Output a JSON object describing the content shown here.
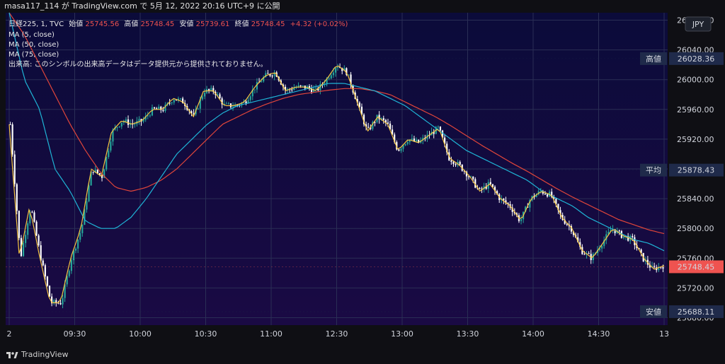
{
  "header": {
    "user": "masa117_114",
    "via": "が TradingView.com で",
    "timestamp": "5月 12, 2022 20:16 UTC+9",
    "published": "に公開"
  },
  "legend": {
    "symbol": "日経225, 1, TVC",
    "open_label": "始値",
    "open": "25745.56",
    "high_label": "高値",
    "high": "25748.45",
    "low_label": "安値",
    "low": "25739.61",
    "close_label": "終値",
    "close": "25748.45",
    "change": "+4.32 (+0.02%)",
    "ma1": "MA (5, close)",
    "ma2": "MA (50, close)",
    "ma3": "MA (75, close)",
    "volume_note": "出来高: このシンボルの出来高データはデータ提供元から提供されておりません。"
  },
  "currency": "JPY",
  "footer": {
    "brand": "TradingView"
  },
  "markers": {
    "high": {
      "label": "高値",
      "value": "26028.36"
    },
    "avg": {
      "label": "平均",
      "value": "25878.43"
    },
    "last": {
      "value": "25748.45"
    },
    "low": {
      "label": "安値",
      "value": "25688.11"
    }
  },
  "colors": {
    "background_top": "#0b0b3a",
    "background_bottom": "#1a0a44",
    "up": "#26a69a",
    "down": "#ffffff",
    "ma5": "#f5c542",
    "ma50": "#1fb5d6",
    "ma75": "#e0453a",
    "marker_box": "#1f2a4a",
    "last_box": "#ef5350"
  },
  "chart_data": {
    "type": "candlestick",
    "interval": "1 minute",
    "y_ticks": [
      "26080.00",
      "26040.00",
      "26000.00",
      "25960.00",
      "25920.00",
      "25880.00",
      "25840.00",
      "25800.00",
      "25760.00",
      "25720.00",
      "25680.00"
    ],
    "ylim": [
      25670,
      26090
    ],
    "x_ticks": [
      "2",
      "09:30",
      "10:00",
      "10:30",
      "11:00",
      "12:30",
      "13:00",
      "13:30",
      "14:00",
      "14:30",
      "13"
    ],
    "close_path": [
      25940,
      25760,
      25830,
      25760,
      25700,
      25700,
      25760,
      25800,
      25880,
      25870,
      25930,
      25945,
      25940,
      25945,
      25960,
      25960,
      25975,
      25970,
      25950,
      25985,
      25985,
      25965,
      25965,
      25970,
      25990,
      26005,
      26010,
      25985,
      25990,
      25990,
      25985,
      26000,
      26020,
      26010,
      25970,
      25930,
      25950,
      25940,
      25905,
      25920,
      25915,
      25925,
      25935,
      25895,
      25885,
      25870,
      25850,
      25860,
      25840,
      25830,
      25810,
      25840,
      25850,
      25845,
      25815,
      25800,
      25770,
      25760,
      25780,
      25800,
      25790,
      25785,
      25760,
      25745,
      25750
    ],
    "ma50_path": [
      26090,
      26000,
      25960,
      25880,
      25850,
      25810,
      25800,
      25800,
      25815,
      25840,
      25870,
      25900,
      25920,
      25940,
      25955,
      25965,
      25970,
      25975,
      25980,
      25985,
      25990,
      25995,
      25995,
      25990,
      25985,
      25975,
      25965,
      25950,
      25935,
      25920,
      25905,
      25895,
      25885,
      25875,
      25865,
      25850,
      25840,
      25830,
      25815,
      25805,
      25795,
      25785,
      25780,
      25770
    ],
    "ma75_path": [
      26090,
      26060,
      26020,
      25980,
      25940,
      25905,
      25875,
      25855,
      25850,
      25855,
      25865,
      25880,
      25900,
      25920,
      25940,
      25950,
      25960,
      25968,
      25975,
      25980,
      25983,
      25986,
      25988,
      25988,
      25985,
      25980,
      25970,
      25960,
      25950,
      25938,
      25925,
      25912,
      25900,
      25888,
      25877,
      25865,
      25853,
      25842,
      25832,
      25822,
      25812,
      25805,
      25798,
      25793
    ]
  }
}
